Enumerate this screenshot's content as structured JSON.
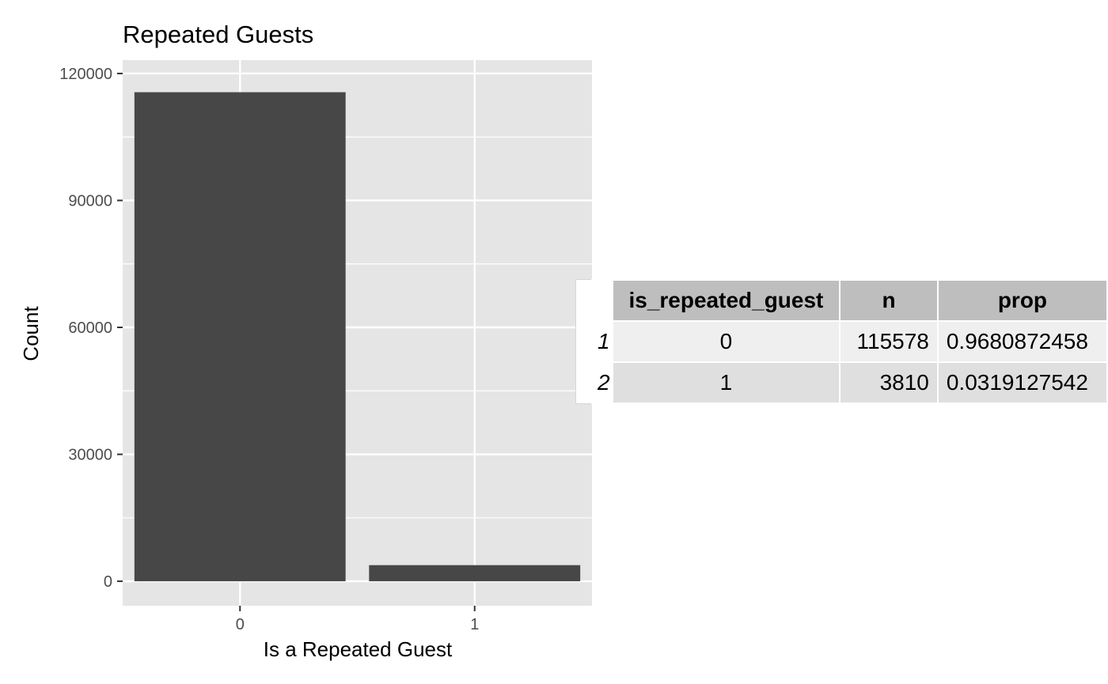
{
  "chart_data": {
    "type": "bar",
    "title": "Repeated Guests",
    "xlabel": "Is a Repeated Guest",
    "ylabel": "Count",
    "categories": [
      "0",
      "1"
    ],
    "values": [
      115578,
      3810
    ],
    "ylim": [
      -5779,
      123167
    ],
    "yticks": [
      0,
      30000,
      60000,
      90000,
      120000
    ],
    "grid": true,
    "colors": {
      "panel": "#E5E5E5",
      "grid": "#FFFFFF",
      "bar": "#474747",
      "tick_text": "#4D4D4D"
    }
  },
  "table": {
    "columns": [
      "is_repeated_guest",
      "n",
      "prop"
    ],
    "rows": [
      {
        "rowname": "1",
        "is_repeated_guest": "0",
        "n": "115578",
        "prop": "0.9680872458"
      },
      {
        "rowname": "2",
        "is_repeated_guest": "1",
        "n": "3810",
        "prop": "0.0319127542"
      }
    ],
    "colors": {
      "header": "#BEBEBE",
      "row_odd": "#EFEFEF",
      "row_even": "#DFDFDF"
    }
  }
}
